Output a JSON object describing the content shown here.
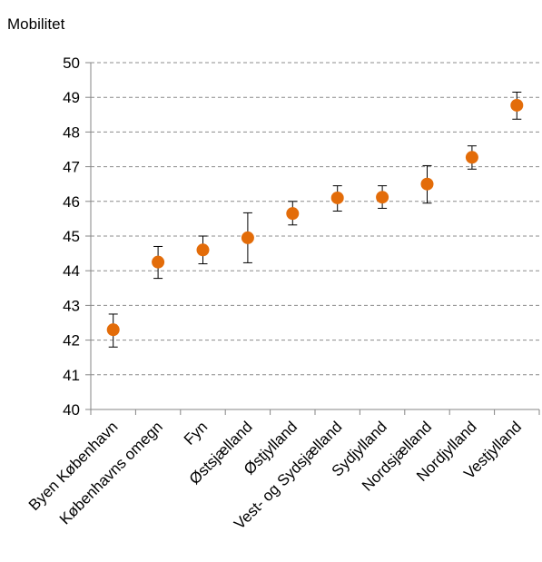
{
  "chart_data": {
    "type": "scatter",
    "title": "",
    "xlabel": "",
    "ylabel": "Mobilitet",
    "ylim": [
      40,
      50
    ],
    "ytick_step": 1,
    "grid": "horizontal-dashed",
    "error_bars": true,
    "marker_color": "#E36C09",
    "categories": [
      "Byen København",
      "Københavns omegn",
      "Fyn",
      "Østsjælland",
      "Østjylland",
      "Vest- og Sydsjælland",
      "Sydjylland",
      "Nordsjælland",
      "Nordjylland",
      "Vestjylland"
    ],
    "values": [
      42.3,
      44.25,
      44.6,
      44.95,
      45.65,
      46.1,
      46.12,
      46.5,
      47.27,
      48.77
    ],
    "error_low": [
      41.8,
      43.78,
      44.2,
      44.23,
      45.32,
      45.72,
      45.8,
      45.95,
      46.93,
      48.37
    ],
    "error_high": [
      42.75,
      44.7,
      45.0,
      45.67,
      46.0,
      46.45,
      46.45,
      47.03,
      47.6,
      49.15
    ]
  }
}
